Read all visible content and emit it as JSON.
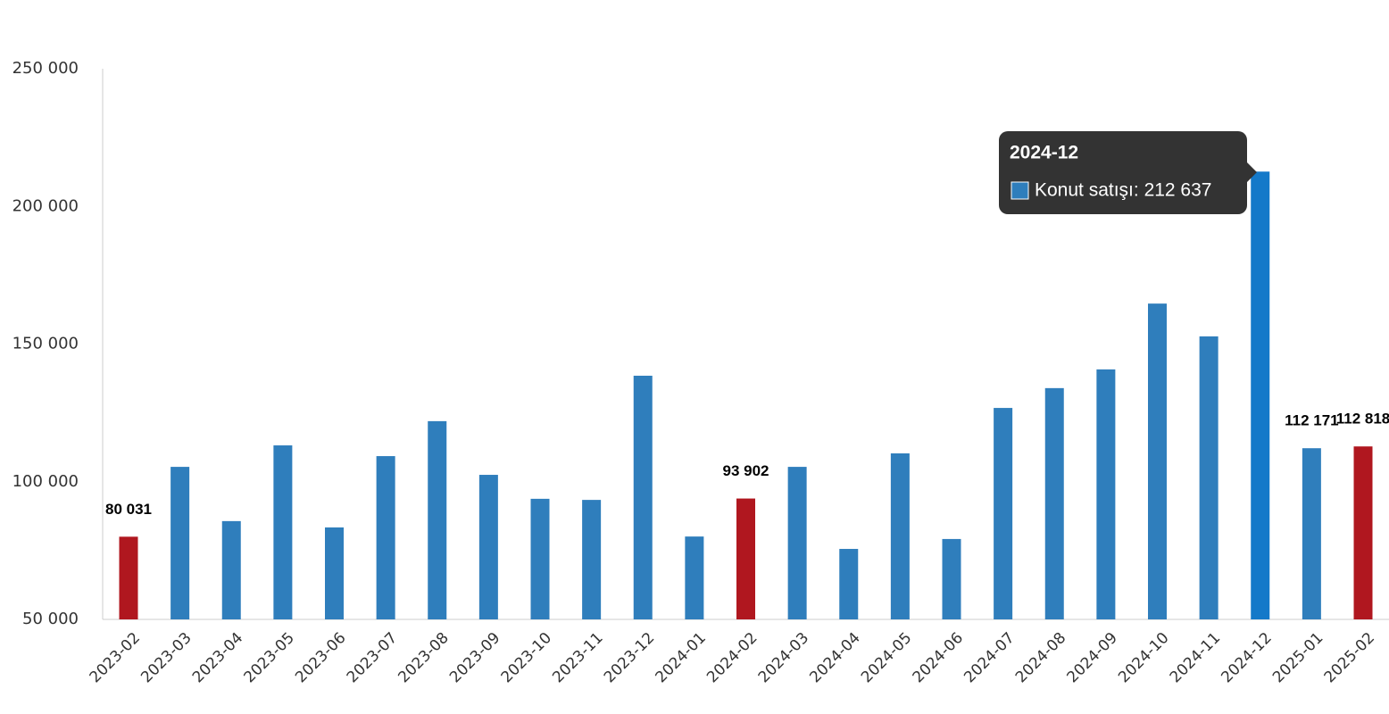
{
  "chart_data": {
    "type": "bar",
    "series": [
      {
        "name": "Konut satışı",
        "categories": [
          "2023-02",
          "2023-03",
          "2023-04",
          "2023-05",
          "2023-06",
          "2023-07",
          "2023-08",
          "2023-09",
          "2023-10",
          "2023-11",
          "2023-12",
          "2024-01",
          "2024-02",
          "2024-03",
          "2024-04",
          "2024-05",
          "2024-06",
          "2024-07",
          "2024-08",
          "2024-09",
          "2024-10",
          "2024-11",
          "2024-12",
          "2025-01",
          "2025-02"
        ],
        "values": [
          80031,
          105400,
          85700,
          113200,
          83400,
          109300,
          122000,
          102500,
          93800,
          93400,
          138500,
          80100,
          93902,
          105400,
          75600,
          110300,
          79200,
          126800,
          134000,
          140800,
          164700,
          152800,
          212637,
          112171,
          112818
        ],
        "value_labels": [
          "80 031",
          null,
          null,
          null,
          null,
          null,
          null,
          null,
          null,
          null,
          null,
          null,
          "93 902",
          null,
          null,
          null,
          null,
          null,
          null,
          null,
          null,
          null,
          null,
          "112 171",
          "112 818"
        ],
        "colors": [
          "#b0171f",
          "#2f7ebc",
          "#2f7ebc",
          "#2f7ebc",
          "#2f7ebc",
          "#2f7ebc",
          "#2f7ebc",
          "#2f7ebc",
          "#2f7ebc",
          "#2f7ebc",
          "#2f7ebc",
          "#2f7ebc",
          "#b0171f",
          "#2f7ebc",
          "#2f7ebc",
          "#2f7ebc",
          "#2f7ebc",
          "#2f7ebc",
          "#2f7ebc",
          "#2f7ebc",
          "#2f7ebc",
          "#2f7ebc",
          "#1479c9",
          "#2f7ebc",
          "#b0171f"
        ]
      }
    ],
    "ylim": [
      50000,
      250000
    ],
    "yticks": [
      {
        "value": 50000,
        "label": "50 000"
      },
      {
        "value": 100000,
        "label": "100 000"
      },
      {
        "value": 150000,
        "label": "150 000"
      },
      {
        "value": 200000,
        "label": "200 000"
      },
      {
        "value": 250000,
        "label": "250 000"
      }
    ],
    "grid": false,
    "tooltip": {
      "title": "2024-12",
      "text": "Konut satışı: 212 637",
      "color": "#2f7ebc"
    }
  }
}
